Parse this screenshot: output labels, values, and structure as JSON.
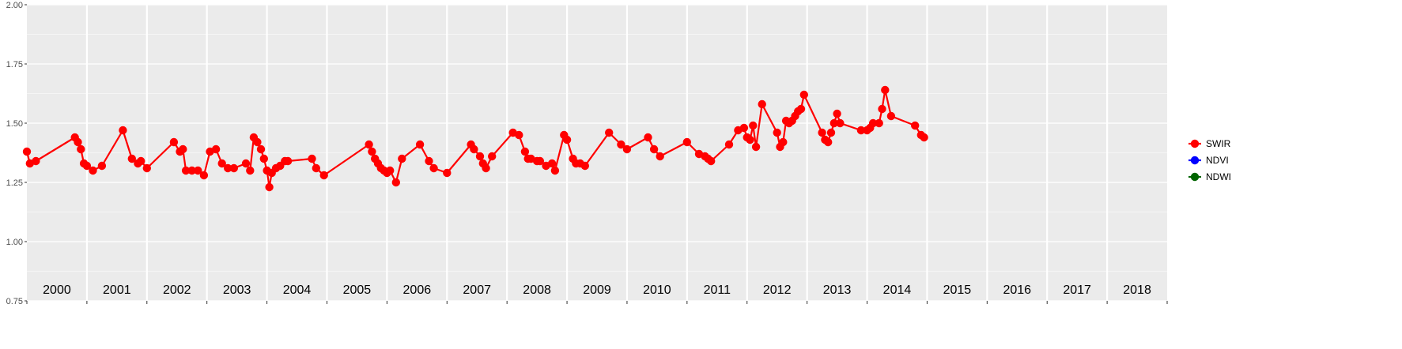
{
  "chart_data": {
    "type": "line",
    "ylim": [
      0.75,
      2.0
    ],
    "y_ticks": [
      "0.75",
      "1.00",
      "1.25",
      "1.50",
      "1.75",
      "2.00"
    ],
    "x_domain": [
      2000.0,
      2019.0
    ],
    "year_labels": [
      "2000",
      "2001",
      "2002",
      "2003",
      "2004",
      "2005",
      "2006",
      "2007",
      "2008",
      "2009",
      "2010",
      "2011",
      "2012",
      "2013",
      "2014",
      "2015",
      "2016",
      "2017",
      "2018"
    ],
    "grid": true,
    "legend_position": "right",
    "series": [
      {
        "name": "SWIR",
        "color": "#ff0000",
        "points": [
          [
            2000.0,
            1.38
          ],
          [
            2000.05,
            1.33
          ],
          [
            2000.15,
            1.34
          ],
          [
            2000.8,
            1.44
          ],
          [
            2000.85,
            1.42
          ],
          [
            2000.9,
            1.39
          ],
          [
            2000.95,
            1.33
          ],
          [
            2001.0,
            1.32
          ],
          [
            2001.1,
            1.3
          ],
          [
            2001.25,
            1.32
          ],
          [
            2001.6,
            1.47
          ],
          [
            2001.75,
            1.35
          ],
          [
            2001.85,
            1.33
          ],
          [
            2001.9,
            1.34
          ],
          [
            2002.0,
            1.31
          ],
          [
            2002.45,
            1.42
          ],
          [
            2002.55,
            1.38
          ],
          [
            2002.6,
            1.39
          ],
          [
            2002.65,
            1.3
          ],
          [
            2002.75,
            1.3
          ],
          [
            2002.85,
            1.3
          ],
          [
            2002.95,
            1.28
          ],
          [
            2003.05,
            1.38
          ],
          [
            2003.15,
            1.39
          ],
          [
            2003.25,
            1.33
          ],
          [
            2003.35,
            1.31
          ],
          [
            2003.45,
            1.31
          ],
          [
            2003.65,
            1.33
          ],
          [
            2003.72,
            1.3
          ],
          [
            2003.78,
            1.44
          ],
          [
            2003.84,
            1.42
          ],
          [
            2003.9,
            1.39
          ],
          [
            2003.95,
            1.35
          ],
          [
            2004.0,
            1.3
          ],
          [
            2004.04,
            1.23
          ],
          [
            2004.08,
            1.29
          ],
          [
            2004.15,
            1.31
          ],
          [
            2004.22,
            1.32
          ],
          [
            2004.3,
            1.34
          ],
          [
            2004.35,
            1.34
          ],
          [
            2004.75,
            1.35
          ],
          [
            2004.82,
            1.31
          ],
          [
            2004.95,
            1.28
          ],
          [
            2005.7,
            1.41
          ],
          [
            2005.75,
            1.38
          ],
          [
            2005.8,
            1.35
          ],
          [
            2005.85,
            1.33
          ],
          [
            2005.9,
            1.31
          ],
          [
            2005.95,
            1.3
          ],
          [
            2006.0,
            1.29
          ],
          [
            2006.05,
            1.3
          ],
          [
            2006.15,
            1.25
          ],
          [
            2006.25,
            1.35
          ],
          [
            2006.55,
            1.41
          ],
          [
            2006.7,
            1.34
          ],
          [
            2006.78,
            1.31
          ],
          [
            2007.0,
            1.29
          ],
          [
            2007.4,
            1.41
          ],
          [
            2007.45,
            1.39
          ],
          [
            2007.55,
            1.36
          ],
          [
            2007.6,
            1.33
          ],
          [
            2007.65,
            1.31
          ],
          [
            2007.75,
            1.36
          ],
          [
            2008.1,
            1.46
          ],
          [
            2008.2,
            1.45
          ],
          [
            2008.3,
            1.38
          ],
          [
            2008.35,
            1.35
          ],
          [
            2008.4,
            1.35
          ],
          [
            2008.5,
            1.34
          ],
          [
            2008.55,
            1.34
          ],
          [
            2008.65,
            1.32
          ],
          [
            2008.75,
            1.33
          ],
          [
            2008.8,
            1.3
          ],
          [
            2008.95,
            1.45
          ],
          [
            2009.0,
            1.43
          ],
          [
            2009.1,
            1.35
          ],
          [
            2009.15,
            1.33
          ],
          [
            2009.22,
            1.33
          ],
          [
            2009.3,
            1.32
          ],
          [
            2009.7,
            1.46
          ],
          [
            2009.9,
            1.41
          ],
          [
            2010.0,
            1.39
          ],
          [
            2010.35,
            1.44
          ],
          [
            2010.45,
            1.39
          ],
          [
            2010.55,
            1.36
          ],
          [
            2011.0,
            1.42
          ],
          [
            2011.2,
            1.37
          ],
          [
            2011.3,
            1.36
          ],
          [
            2011.35,
            1.35
          ],
          [
            2011.4,
            1.34
          ],
          [
            2011.7,
            1.41
          ],
          [
            2011.85,
            1.47
          ],
          [
            2011.95,
            1.48
          ],
          [
            2012.0,
            1.44
          ],
          [
            2012.05,
            1.43
          ],
          [
            2012.1,
            1.49
          ],
          [
            2012.15,
            1.4
          ],
          [
            2012.25,
            1.58
          ],
          [
            2012.5,
            1.46
          ],
          [
            2012.55,
            1.4
          ],
          [
            2012.6,
            1.42
          ],
          [
            2012.65,
            1.51
          ],
          [
            2012.7,
            1.5
          ],
          [
            2012.75,
            1.51
          ],
          [
            2012.8,
            1.53
          ],
          [
            2012.85,
            1.55
          ],
          [
            2012.9,
            1.56
          ],
          [
            2012.95,
            1.62
          ],
          [
            2013.25,
            1.46
          ],
          [
            2013.3,
            1.43
          ],
          [
            2013.35,
            1.42
          ],
          [
            2013.4,
            1.46
          ],
          [
            2013.45,
            1.5
          ],
          [
            2013.5,
            1.54
          ],
          [
            2013.55,
            1.5
          ],
          [
            2013.9,
            1.47
          ],
          [
            2014.0,
            1.47
          ],
          [
            2014.05,
            1.48
          ],
          [
            2014.1,
            1.5
          ],
          [
            2014.2,
            1.5
          ],
          [
            2014.25,
            1.56
          ],
          [
            2014.3,
            1.64
          ],
          [
            2014.4,
            1.53
          ],
          [
            2014.8,
            1.49
          ],
          [
            2014.9,
            1.45
          ],
          [
            2014.95,
            1.44
          ]
        ]
      },
      {
        "name": "NDVI",
        "color": "#0000ff",
        "points": []
      },
      {
        "name": "NDWI",
        "color": "#006400",
        "points": []
      }
    ]
  }
}
